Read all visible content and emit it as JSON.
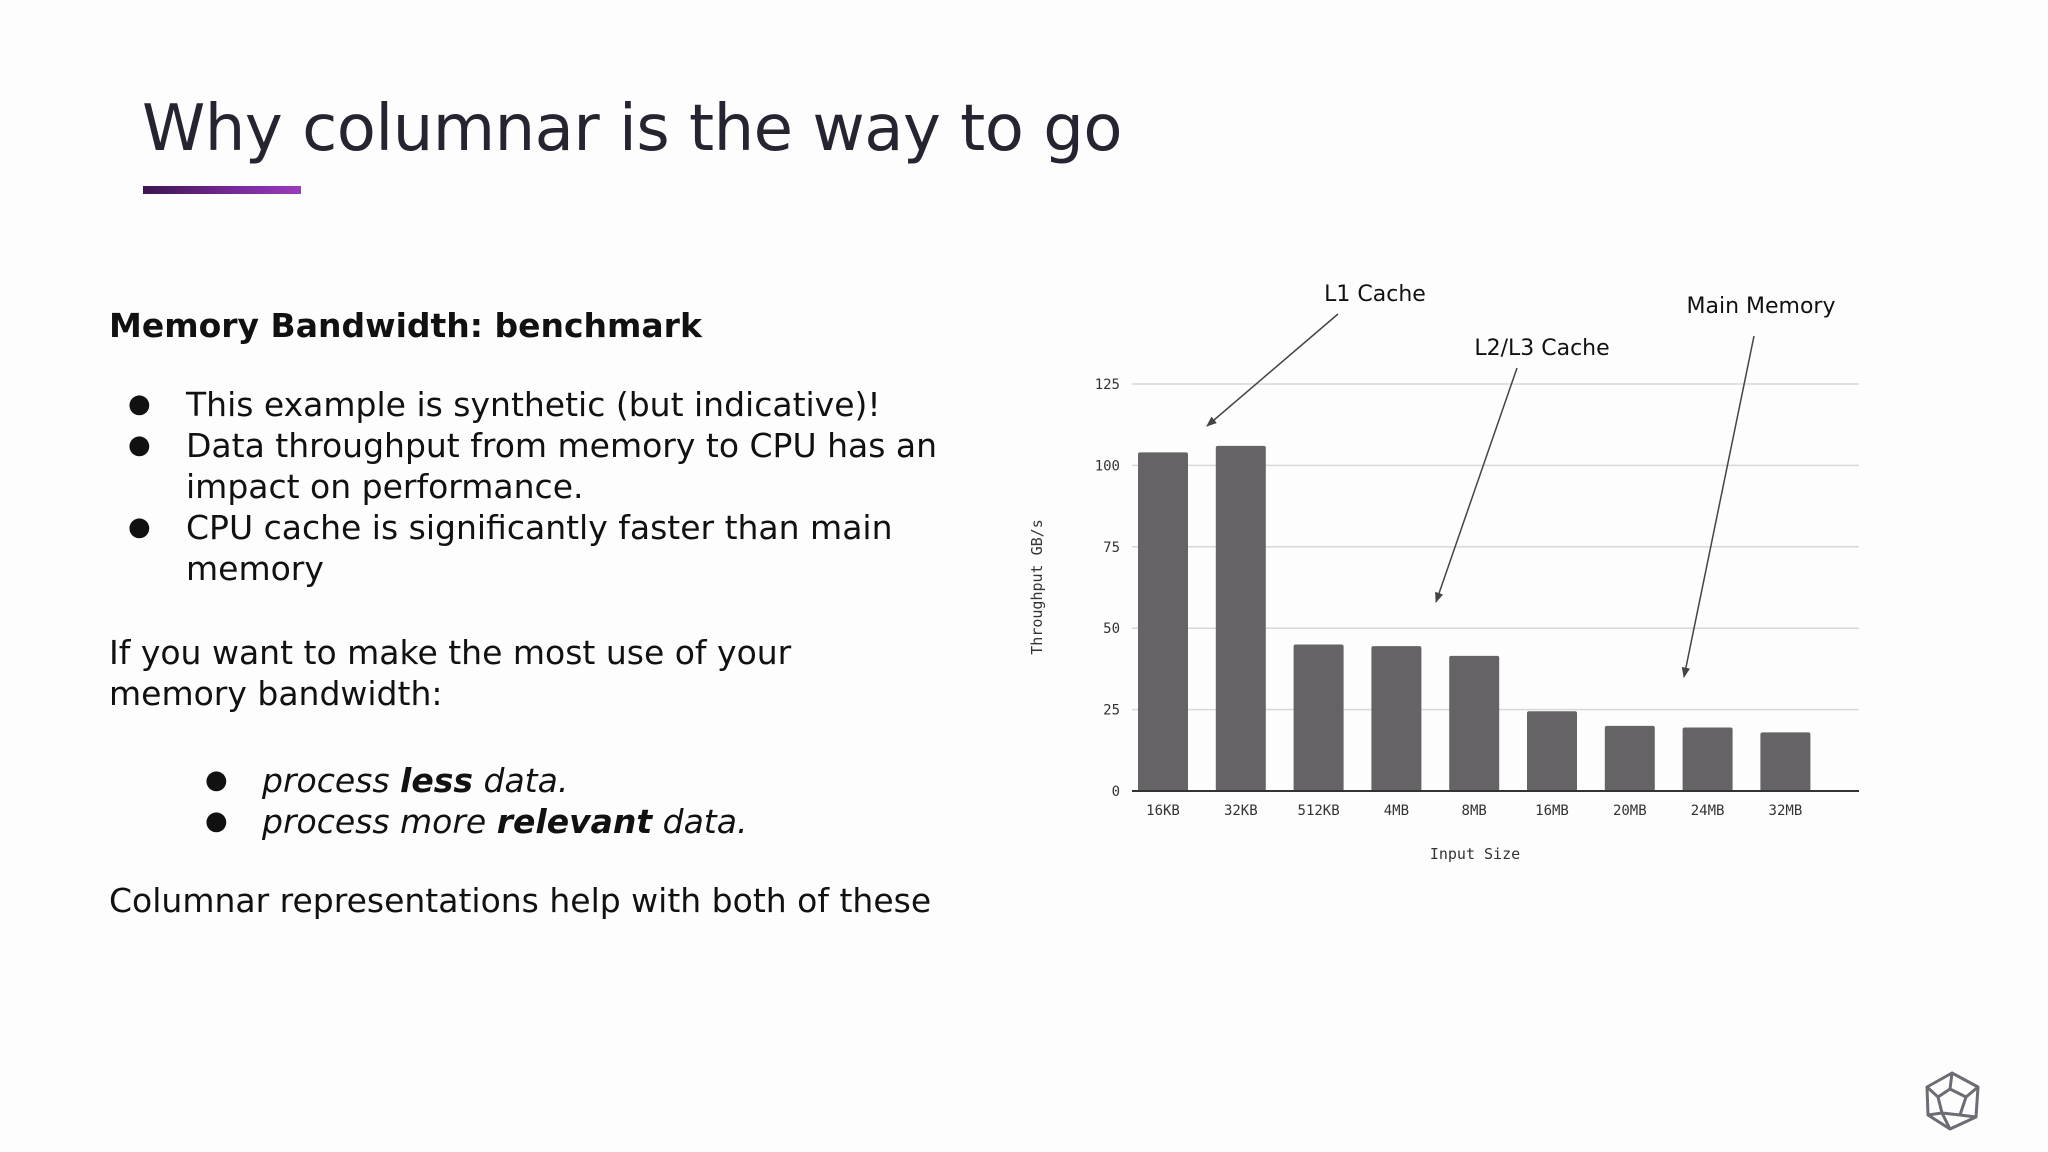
{
  "slide": {
    "title": "Why columnar is the way to go",
    "accent_color": "#7a2a9b",
    "subhead": "Memory Bandwidth: benchmark",
    "bullets": [
      "This example is synthetic (but indicative)!",
      "Data throughput from memory to CPU has an impact on performance.",
      "CPU cache is significantly faster than main memory"
    ],
    "paragraph": "If you want to make the most use of your memory bandwidth:",
    "sub_bullets": [
      {
        "pre": "process ",
        "bold": "less",
        "post": " data."
      },
      {
        "pre": "process more ",
        "bold": "relevant",
        "post": " data."
      }
    ],
    "closing": "Columnar representations help with both of these",
    "logo_icon": "polyhedron-logo-icon"
  },
  "chart_data": {
    "type": "bar",
    "categories": [
      "16KB",
      "32KB",
      "512KB",
      "4MB",
      "8MB",
      "16MB",
      "20MB",
      "24MB",
      "32MB"
    ],
    "values": [
      104,
      106,
      45,
      44.5,
      41.5,
      24.5,
      20,
      19.5,
      18
    ],
    "xlabel": "Input Size",
    "ylabel": "Throughput GB/s",
    "ylim": [
      0,
      125
    ],
    "yticks": [
      0,
      25,
      50,
      75,
      100,
      125
    ],
    "grid": true,
    "bar_color": "#656366",
    "annotations": [
      {
        "text": "L1 Cache",
        "points_to": "32KB"
      },
      {
        "text": "L2/L3 Cache",
        "points_to": "8MB"
      },
      {
        "text": "Main Memory",
        "points_to": "32MB"
      }
    ]
  }
}
